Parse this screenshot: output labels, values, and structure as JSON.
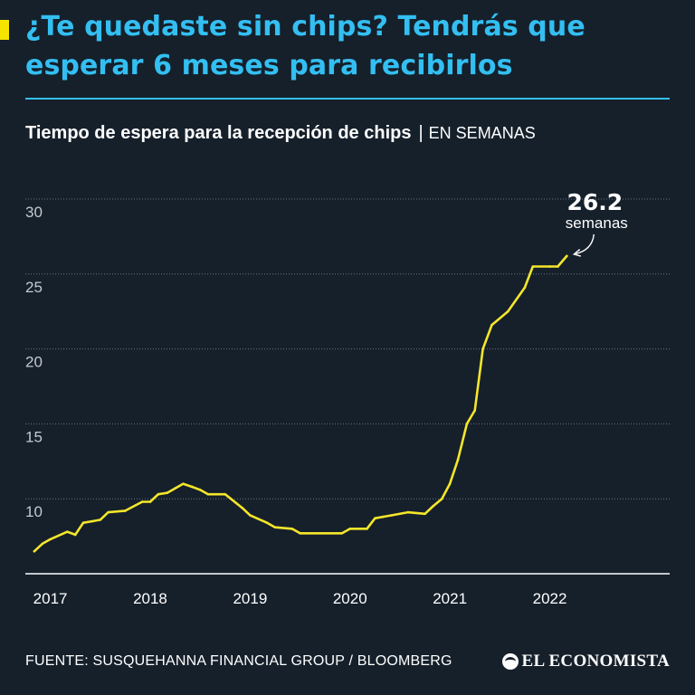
{
  "header": {
    "title": "¿Te quedaste sin chips? Tendrás que esperar 6 meses para recibirlos",
    "subtitle": "Tiempo de espera para la recepción de chips",
    "unit": "EN SEMANAS"
  },
  "colors": {
    "accent": "#f5e400",
    "headline": "#33bff2",
    "background": "#15202b",
    "line": "#f5e62a",
    "grid": "#6b7580"
  },
  "chart_data": {
    "type": "line",
    "title": "Tiempo de espera para la recepción de chips",
    "ylabel": "EN SEMANAS",
    "xlim": [
      2016.75,
      2023.2
    ],
    "ylim": [
      5,
      30
    ],
    "yticks": [
      10,
      15,
      20,
      25,
      30
    ],
    "xticks": [
      {
        "value": 2017.0,
        "label": "2017"
      },
      {
        "value": 2018.0,
        "label": "2018"
      },
      {
        "value": 2019.0,
        "label": "2019"
      },
      {
        "value": 2020.0,
        "label": "2020"
      },
      {
        "value": 2021.0,
        "label": "2021"
      },
      {
        "value": 2022.0,
        "label": "2022"
      }
    ],
    "grid": true,
    "series": [
      {
        "name": "",
        "x": [
          2016.84,
          2016.92,
          2017.0,
          2017.17,
          2017.25,
          2017.33,
          2017.42,
          2017.5,
          2017.58,
          2017.75,
          2017.92,
          2018.0,
          2018.08,
          2018.17,
          2018.25,
          2018.33,
          2018.42,
          2018.5,
          2018.58,
          2018.75,
          2018.92,
          2019.0,
          2019.17,
          2019.25,
          2019.42,
          2019.5,
          2019.67,
          2019.83,
          2019.92,
          2020.0,
          2020.17,
          2020.25,
          2020.33,
          2020.42,
          2020.58,
          2020.75,
          2020.83,
          2020.92,
          2021.0,
          2021.08,
          2021.17,
          2021.25,
          2021.33,
          2021.42,
          2021.58,
          2021.75,
          2021.83,
          2022.0,
          2022.08,
          2022.17
        ],
        "y": [
          6.5,
          7.0,
          7.3,
          7.8,
          7.6,
          8.4,
          8.5,
          8.6,
          9.1,
          9.2,
          9.8,
          9.8,
          10.3,
          10.4,
          10.7,
          11.0,
          10.8,
          10.6,
          10.3,
          10.3,
          9.4,
          8.9,
          8.4,
          8.1,
          8.0,
          7.7,
          7.7,
          7.7,
          7.7,
          8.0,
          8.0,
          8.7,
          8.8,
          8.9,
          9.1,
          9.0,
          9.5,
          10.0,
          11.0,
          12.6,
          15.0,
          15.9,
          20.0,
          21.6,
          22.5,
          24.1,
          25.5,
          25.5,
          25.5,
          26.2
        ]
      }
    ],
    "annotation": {
      "value": "26.2",
      "label": "semanas"
    }
  },
  "footer": {
    "source": "FUENTE: SUSQUEHANNA FINANCIAL GROUP / BLOOMBERG",
    "logo": "EL ECONOMISTA",
    "logo_icon": "el-economista-logo-icon"
  }
}
